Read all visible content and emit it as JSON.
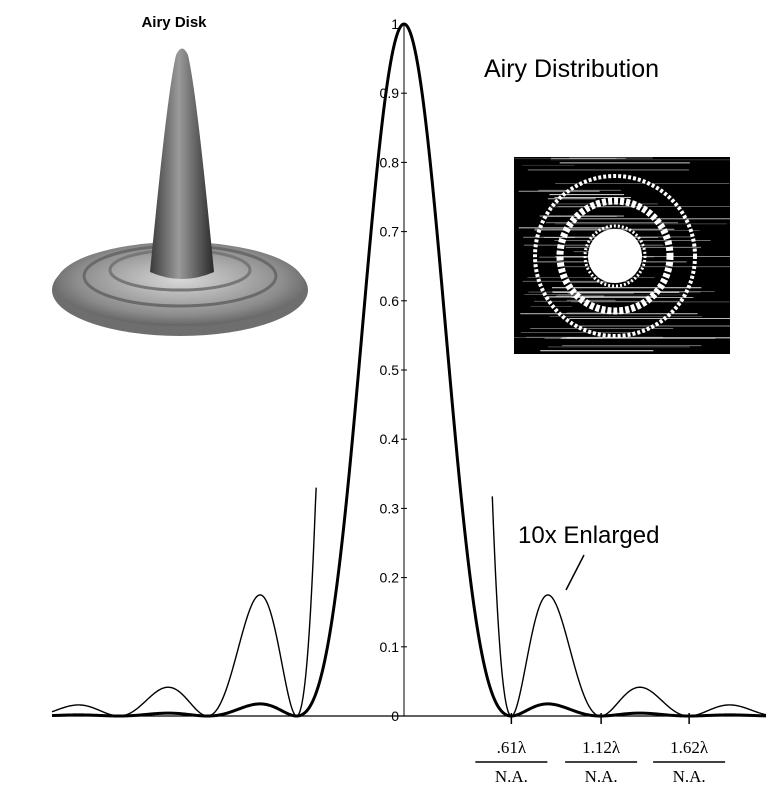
{
  "chart_data": {
    "type": "line",
    "title": "Airy Distribution",
    "ylim": [
      0,
      1
    ],
    "yticks": [
      "0",
      "0.1",
      "0.2",
      "0.3",
      "0.4",
      "0.5",
      "0.6",
      "0.7",
      "0.8",
      "0.9",
      "1"
    ],
    "x_tick_labels": [
      {
        "numerator": ".61λ",
        "denominator": "N.A.",
        "value": 0.61
      },
      {
        "numerator": "1.12λ",
        "denominator": "N.A.",
        "value": 1.12
      },
      {
        "numerator": "1.62λ",
        "denominator": "N.A.",
        "value": 1.62
      }
    ],
    "series": [
      {
        "style": "thick",
        "formula": "airy"
      },
      {
        "style": "thin",
        "scale": 10,
        "clip": 0.33
      }
    ],
    "annotation": "10x Enlarged",
    "inset_labels": {
      "airy_disk": "Airy Disk"
    }
  }
}
